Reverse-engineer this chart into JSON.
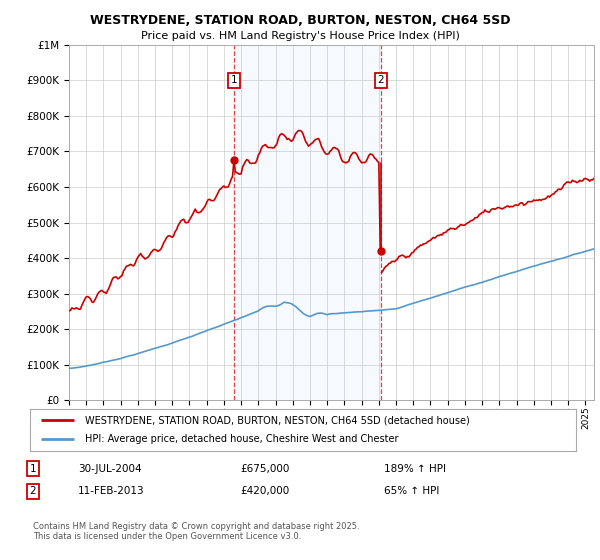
{
  "title": "WESTRYDENE, STATION ROAD, BURTON, NESTON, CH64 5SD",
  "subtitle": "Price paid vs. HM Land Registry's House Price Index (HPI)",
  "legend_line1": "WESTRYDENE, STATION ROAD, BURTON, NESTON, CH64 5SD (detached house)",
  "legend_line2": "HPI: Average price, detached house, Cheshire West and Chester",
  "sale1_date": "30-JUL-2004",
  "sale1_price": 675000,
  "sale1_label": "189% ↑ HPI",
  "sale2_date": "11-FEB-2013",
  "sale2_price": 420000,
  "sale2_label": "65% ↑ HPI",
  "sale1_x": 2004.58,
  "sale2_x": 2013.12,
  "house_color": "#cc0000",
  "hpi_color": "#5599cc",
  "vline_color": "#dd4444",
  "shade_color": "#ddeeff",
  "background_color": "#ffffff",
  "grid_color": "#cccccc",
  "ylim": [
    0,
    1000000
  ],
  "xlim_start": 1995,
  "xlim_end": 2025.5,
  "footer": "Contains HM Land Registry data © Crown copyright and database right 2025.\nThis data is licensed under the Open Government Licence v3.0."
}
